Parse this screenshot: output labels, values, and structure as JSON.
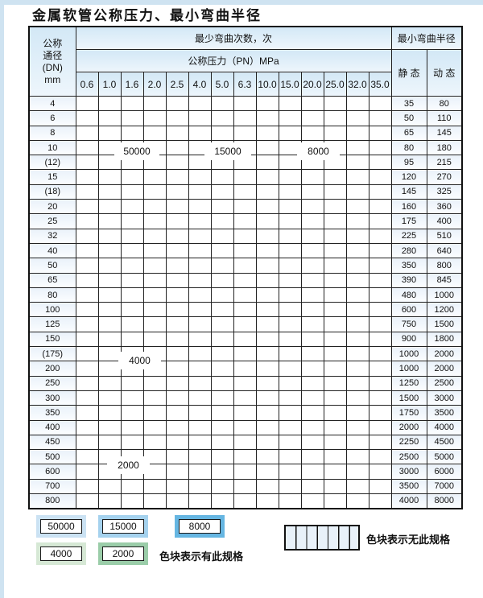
{
  "title": "金属软管公称压力、最小弯曲半径",
  "table": {
    "header": {
      "dn_lines": [
        "公称",
        "通径",
        "(DN)",
        "mm"
      ],
      "bend_cycles_label": "最少弯曲次数，次",
      "pressure_label": "公称压力（PN）MPa",
      "radius_label": "最小弯曲半径",
      "static_label": "静 态",
      "dynamic_label": "动 态"
    },
    "pressure_columns": [
      "0.6",
      "1.0",
      "1.6",
      "2.0",
      "2.5",
      "4.0",
      "5.0",
      "6.3",
      "10.0",
      "15.0",
      "20.0",
      "25.0",
      "32.0",
      "35.0"
    ],
    "zone_legend_meaning": {
      "b1": "50000",
      "b2": "15000",
      "b3": "8000",
      "g1": "4000",
      "g2": "2000",
      "h": "no-spec-hatch"
    },
    "rows": [
      {
        "dn": "4",
        "static": "35",
        "dynamic": "80",
        "zones": [
          [
            "b1",
            5
          ],
          [
            "b2",
            3
          ],
          [
            "b3",
            6
          ]
        ]
      },
      {
        "dn": "6",
        "static": "50",
        "dynamic": "110",
        "zones": [
          [
            "b1",
            5
          ],
          [
            "b2",
            3
          ],
          [
            "b3",
            4
          ],
          [
            "h",
            2
          ]
        ]
      },
      {
        "dn": "8",
        "static": "65",
        "dynamic": "145",
        "zones": [
          [
            "b1",
            5
          ],
          [
            "b2",
            3
          ],
          [
            "b3",
            4
          ],
          [
            "h",
            2
          ]
        ]
      },
      {
        "dn": "10",
        "static": "80",
        "dynamic": "180",
        "zones": [
          [
            "b1",
            5
          ],
          [
            "b2",
            3
          ],
          [
            "b3",
            4
          ],
          [
            "h",
            2
          ]
        ]
      },
      {
        "dn": "(12)",
        "static": "95",
        "dynamic": "215",
        "zones": [
          [
            "b1",
            5
          ],
          [
            "b2",
            3
          ],
          [
            "b3",
            4
          ],
          [
            "h",
            2
          ]
        ]
      },
      {
        "dn": "15",
        "static": "120",
        "dynamic": "270",
        "zones": [
          [
            "b1",
            5
          ],
          [
            "b2",
            3
          ],
          [
            "b3",
            4
          ],
          [
            "h",
            2
          ]
        ]
      },
      {
        "dn": "(18)",
        "static": "145",
        "dynamic": "325",
        "zones": [
          [
            "b1",
            5
          ],
          [
            "b2",
            3
          ],
          [
            "b3",
            3
          ],
          [
            "h",
            3
          ]
        ]
      },
      {
        "dn": "20",
        "static": "160",
        "dynamic": "360",
        "zones": [
          [
            "b1",
            5
          ],
          [
            "b2",
            3
          ],
          [
            "b3",
            3
          ],
          [
            "h",
            3
          ]
        ]
      },
      {
        "dn": "25",
        "static": "175",
        "dynamic": "400",
        "zones": [
          [
            "b1",
            5
          ],
          [
            "b2",
            3
          ],
          [
            "b3",
            2
          ],
          [
            "h",
            4
          ]
        ]
      },
      {
        "dn": "32",
        "static": "225",
        "dynamic": "510",
        "zones": [
          [
            "b1",
            5
          ],
          [
            "b2",
            2
          ],
          [
            "b3",
            2
          ],
          [
            "h",
            5
          ]
        ]
      },
      {
        "dn": "40",
        "static": "280",
        "dynamic": "640",
        "zones": [
          [
            "b1",
            5
          ],
          [
            "b2",
            2
          ],
          [
            "b3",
            2
          ],
          [
            "h",
            5
          ]
        ]
      },
      {
        "dn": "50",
        "static": "350",
        "dynamic": "800",
        "zones": [
          [
            "b1",
            4
          ],
          [
            "b2",
            3
          ],
          [
            "b3",
            1
          ],
          [
            "h",
            6
          ]
        ]
      },
      {
        "dn": "65",
        "static": "390",
        "dynamic": "845",
        "zones": [
          [
            "b1",
            3
          ],
          [
            "b2",
            4
          ],
          [
            "b3",
            1
          ],
          [
            "h",
            6
          ]
        ]
      },
      {
        "dn": "80",
        "static": "480",
        "dynamic": "1000",
        "zones": [
          [
            "b1",
            2
          ],
          [
            "b2",
            4
          ],
          [
            "b3",
            1
          ],
          [
            "h",
            7
          ]
        ]
      },
      {
        "dn": "100",
        "static": "600",
        "dynamic": "1200",
        "zones": [
          [
            "g1",
            6
          ],
          [
            "h",
            8
          ]
        ]
      },
      {
        "dn": "125",
        "static": "750",
        "dynamic": "1500",
        "zones": [
          [
            "g1",
            6
          ],
          [
            "h",
            8
          ]
        ]
      },
      {
        "dn": "150",
        "static": "900",
        "dynamic": "1800",
        "zones": [
          [
            "g1",
            6
          ],
          [
            "h",
            8
          ]
        ]
      },
      {
        "dn": "(175)",
        "static": "1000",
        "dynamic": "2000",
        "zones": [
          [
            "g1",
            6
          ],
          [
            "h",
            8
          ]
        ]
      },
      {
        "dn": "200",
        "static": "1000",
        "dynamic": "2000",
        "zones": [
          [
            "g1",
            6
          ],
          [
            "h",
            8
          ]
        ]
      },
      {
        "dn": "250",
        "static": "1250",
        "dynamic": "2500",
        "zones": [
          [
            "g1",
            6
          ],
          [
            "h",
            8
          ]
        ]
      },
      {
        "dn": "300",
        "static": "1500",
        "dynamic": "3000",
        "zones": [
          [
            "g1",
            6
          ],
          [
            "h",
            8
          ]
        ]
      },
      {
        "dn": "350",
        "static": "1750",
        "dynamic": "3500",
        "zones": [
          [
            "g2",
            5
          ],
          [
            "h",
            9
          ]
        ]
      },
      {
        "dn": "400",
        "static": "2000",
        "dynamic": "4000",
        "zones": [
          [
            "g2",
            5
          ],
          [
            "h",
            9
          ]
        ]
      },
      {
        "dn": "450",
        "static": "2250",
        "dynamic": "4500",
        "zones": [
          [
            "g2",
            5
          ],
          [
            "h",
            9
          ]
        ]
      },
      {
        "dn": "500",
        "static": "2500",
        "dynamic": "5000",
        "zones": [
          [
            "g2",
            5
          ],
          [
            "h",
            9
          ]
        ]
      },
      {
        "dn": "600",
        "static": "3000",
        "dynamic": "6000",
        "zones": [
          [
            "g2",
            4
          ],
          [
            "h",
            10
          ]
        ]
      },
      {
        "dn": "700",
        "static": "3500",
        "dynamic": "7000",
        "zones": [
          [
            "g2",
            3
          ],
          [
            "h",
            11
          ]
        ]
      },
      {
        "dn": "800",
        "static": "4000",
        "dynamic": "8000",
        "zones": [
          [
            "g2",
            3
          ],
          [
            "h",
            11
          ]
        ]
      }
    ]
  },
  "overlay_labels": {
    "cycles_50000": "50000",
    "cycles_15000": "15000",
    "cycles_8000": "8000",
    "cycles_4000": "4000",
    "cycles_2000": "2000"
  },
  "legend": {
    "swatches": [
      {
        "label": "50000",
        "zone": "b1",
        "color": "#cbe2f3"
      },
      {
        "label": "15000",
        "zone": "b2",
        "color": "#a5d2ee"
      },
      {
        "label": "8000",
        "zone": "b3",
        "color": "#66b6e2"
      },
      {
        "label": "4000",
        "zone": "g1",
        "color": "#d6e8d5"
      },
      {
        "label": "2000",
        "zone": "g2",
        "color": "#9bcda9"
      }
    ],
    "has_spec_text": "色块表示有此规格",
    "no_spec_text": "色块表示无此规格"
  }
}
